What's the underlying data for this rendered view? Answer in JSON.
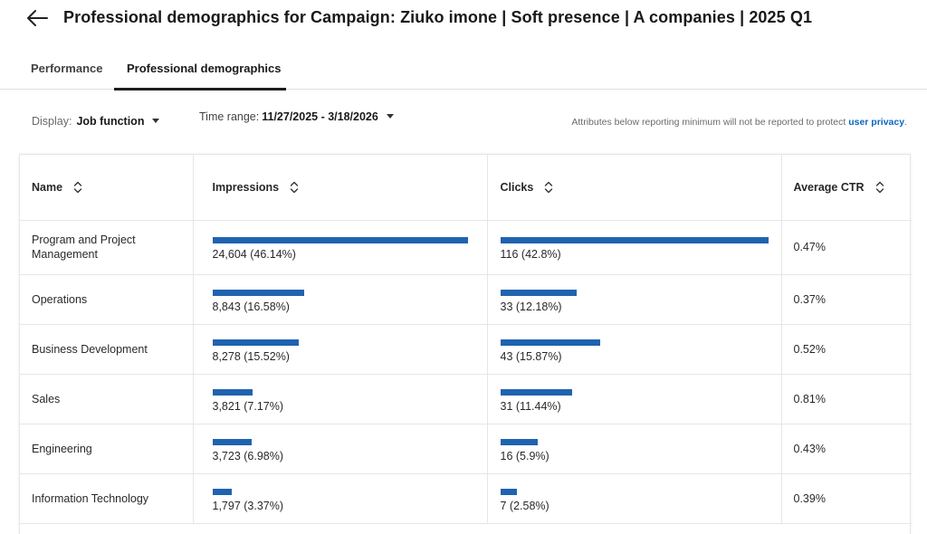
{
  "header": {
    "title": "Professional demographics for Campaign: Ziuko imone | Soft presence | A companies | 2025 Q1"
  },
  "tabs": [
    {
      "label": "Performance",
      "active": false
    },
    {
      "label": "Professional demographics",
      "active": true
    }
  ],
  "controls": {
    "display_label": "Display:",
    "display_value": "Job function",
    "time_label": "Time range:",
    "time_value": "11/27/2025 - 3/18/2026",
    "privacy_text": "Attributes below reporting minimum will not be reported to protect ",
    "privacy_link": "user privacy",
    "privacy_end": "."
  },
  "table": {
    "columns": [
      "Name",
      "Impressions",
      "Clicks",
      "Average CTR"
    ],
    "rows": [
      {
        "name": "Program and Project Management",
        "impressions": "24,604 (46.14%)",
        "impressions_pct": 46.14,
        "clicks": "116 (42.8%)",
        "clicks_pct": 42.8,
        "ctr": "0.47%"
      },
      {
        "name": "Operations",
        "impressions": "8,843 (16.58%)",
        "impressions_pct": 16.58,
        "clicks": "33 (12.18%)",
        "clicks_pct": 12.18,
        "ctr": "0.37%"
      },
      {
        "name": "Business Development",
        "impressions": "8,278 (15.52%)",
        "impressions_pct": 15.52,
        "clicks": "43 (15.87%)",
        "clicks_pct": 15.87,
        "ctr": "0.52%"
      },
      {
        "name": "Sales",
        "impressions": "3,821 (7.17%)",
        "impressions_pct": 7.17,
        "clicks": "31 (11.44%)",
        "clicks_pct": 11.44,
        "ctr": "0.81%"
      },
      {
        "name": "Engineering",
        "impressions": "3,723 (6.98%)",
        "impressions_pct": 6.98,
        "clicks": "16 (5.9%)",
        "clicks_pct": 5.9,
        "ctr": "0.43%"
      },
      {
        "name": "Information Technology",
        "impressions": "1,797 (3.37%)",
        "impressions_pct": 3.37,
        "clicks": "7 (2.58%)",
        "clicks_pct": 2.58,
        "ctr": "0.39%"
      }
    ]
  },
  "colors": {
    "bar": "#1f63b0",
    "link": "#0a66c2"
  }
}
